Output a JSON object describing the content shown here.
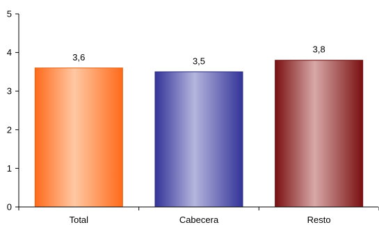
{
  "chart_data": {
    "type": "bar",
    "categories": [
      "Total",
      "Cabecera",
      "Resto"
    ],
    "values": [
      3.6,
      3.5,
      3.8
    ],
    "value_labels": [
      "3,6",
      "3,5",
      "3,8"
    ],
    "y_ticks": [
      "0",
      "1",
      "2",
      "3",
      "4",
      "5"
    ],
    "ylim": [
      0,
      5
    ],
    "grid": false,
    "bar_colors": [
      {
        "edge": "#ff6a1a",
        "mid": "#ffc8a3",
        "stroke": "#e0600f"
      },
      {
        "edge": "#333399",
        "mid": "#b5b5de",
        "stroke": "#2b2b80"
      },
      {
        "edge": "#7a1010",
        "mid": "#d8a8a8",
        "stroke": "#6a0d0d"
      }
    ]
  }
}
